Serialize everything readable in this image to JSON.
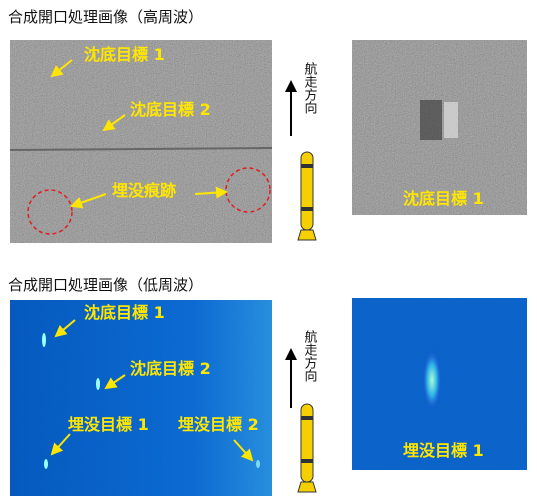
{
  "top": {
    "title": "合成開口処理画像（高周波）",
    "labels": [
      "沈底目標 1",
      "沈底目標 2",
      "埋没痕跡"
    ],
    "direction": "航走方向",
    "inset_label": "沈底目標 1"
  },
  "bottom": {
    "title": "合成開口処理画像（低周波）",
    "labels": [
      "沈底目標 1",
      "沈底目標 2",
      "埋没目標 1",
      "埋没目標 2"
    ],
    "direction": "航走方向",
    "inset_label": "埋没目標 1"
  }
}
